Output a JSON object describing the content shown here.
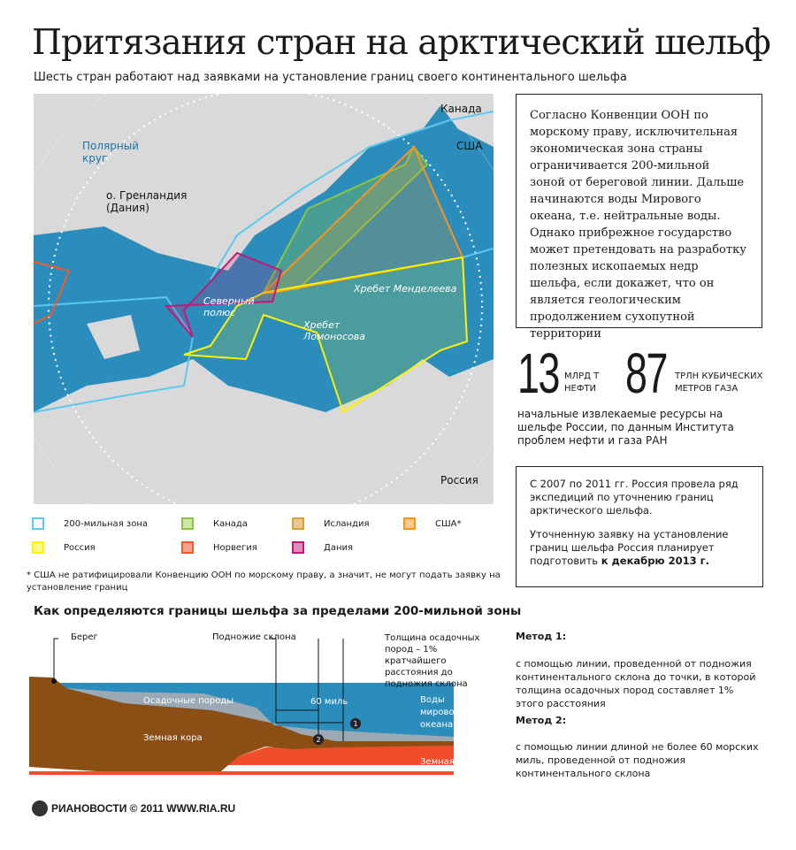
{
  "title": "Притязания стран на арктический шельф",
  "subtitle": "Шесть стран работают над заявками на установление границ своего континентального шельфа",
  "map": {
    "labels": {
      "canada": "Канада",
      "usa": "США",
      "polar_circle": "Полярный круг",
      "greenland": "о. Гренландия (Дания)",
      "north_pole": "Северный полюс",
      "mendeleev": "Хребет Менделеева",
      "lomonosov": "Хребет Ломоносова",
      "russia": "Россия"
    },
    "colors": {
      "sea": "#2b8dbb",
      "land": "#d9d9d9",
      "zone200": "#5bc8ef",
      "canada": "#8cc63f",
      "iceland": "#d4a23a",
      "usa": "#f7941d",
      "russia": "#fff200",
      "norway": "#f15a29",
      "denmark": "#c2187a"
    }
  },
  "info": "Согласно Конвенции ООН по морскому праву, исключительная экономическая зона страны ограничивается 200-мильной зоной от береговой линии. Дальше начинаются воды Мирового океана, т.е. нейтральные воды. Однако прибрежное государство может претендовать на разработку полезных ископаемых недр шельфа, если докажет, что он является геологическим продолжением сухопутной территории",
  "stats": [
    {
      "value": "13",
      "unit1": "МЛРД Т",
      "unit2": "НЕФТИ"
    },
    {
      "value": "87",
      "unit1": "ТРЛН КУБИЧЕСКИХ",
      "unit2": "МЕТРОВ ГАЗА"
    }
  ],
  "resources_text": "начальные извлекаемые ресурсы на шельфе России, по данным Института проблем нефти и газа РАН",
  "box2": {
    "p1": "С 2007 по 2011 гг. Россия провела ряд экспедиций по уточнению границ арктического шельфа.",
    "p2": "Уточненную заявку на установление границ шельфа Россия планирует подготовить",
    "p2_bold": "к декабрю 2013 г."
  },
  "legend": [
    {
      "label": "200-мильная зона",
      "color": "#5bc8ef"
    },
    {
      "label": "Канада",
      "color": "#8cc63f"
    },
    {
      "label": "Исландия",
      "color": "#d4a23a"
    },
    {
      "label": "США*",
      "color": "#f7941d"
    },
    {
      "label": "Россия",
      "color": "#fff200"
    },
    {
      "label": "Норвегия",
      "color": "#f15a29"
    },
    {
      "label": "Дания",
      "color": "#c2187a"
    }
  ],
  "footnote": "* США не ратифицировали Конвенцию ООН по морскому праву, а значит, не могут подать заявку на установление границ",
  "section_title": "Как определяются границы шельфа за пределами 200-мильной зоны",
  "diagram": {
    "coast": "Берег",
    "slope_foot": "Подножие склона",
    "thickness": "Толщина осадочных пород – 1% кратчайшего расстояния до подножия склона",
    "sediments": "Осадочные породы",
    "miles": "60 миль",
    "ocean": "Воды мирового океана",
    "crust": "Земная кора",
    "mantle": "Земная мантия",
    "m1": "1",
    "m2": "2"
  },
  "methods": [
    {
      "title": "Метод 1:",
      "text": "с помощью линии, проведенной от подножия континентального склона до точки, в которой толщина осадочных пород составляет 1% этого расстояния"
    },
    {
      "title": "Метод 2:",
      "text": "с помощью линии длиной не более 60 морских миль, проведенной от подножия континентального склона"
    }
  ],
  "footer": {
    "brand": "РИАНОВОСТИ",
    "copyright": "© 2011",
    "site": "WWW.RIA.RU"
  }
}
